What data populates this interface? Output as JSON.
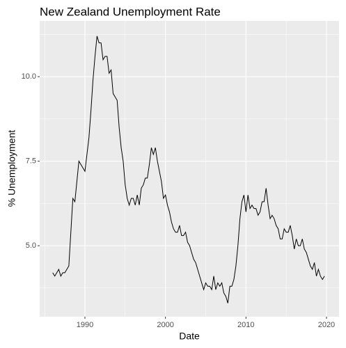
{
  "chart_data": {
    "type": "line",
    "title": "New Zealand Unemployment Rate",
    "x_label": "Date",
    "y_label": "% Unemployment",
    "x": [
      1986,
      1986.25,
      1986.5,
      1986.75,
      1987,
      1987.25,
      1987.5,
      1987.75,
      1988,
      1988.25,
      1988.5,
      1988.75,
      1989,
      1989.25,
      1989.5,
      1989.75,
      1990,
      1990.25,
      1990.5,
      1990.75,
      1991,
      1991.25,
      1991.5,
      1991.75,
      1992,
      1992.25,
      1992.5,
      1992.75,
      1993,
      1993.25,
      1993.5,
      1993.75,
      1994,
      1994.25,
      1994.5,
      1994.75,
      1995,
      1995.25,
      1995.5,
      1995.75,
      1996,
      1996.25,
      1996.5,
      1996.75,
      1997,
      1997.25,
      1997.5,
      1997.75,
      1998,
      1998.25,
      1998.5,
      1998.75,
      1999,
      1999.25,
      1999.5,
      1999.75,
      2000,
      2000.25,
      2000.5,
      2000.75,
      2001,
      2001.25,
      2001.5,
      2001.75,
      2002,
      2002.25,
      2002.5,
      2002.75,
      2003,
      2003.25,
      2003.5,
      2003.75,
      2004,
      2004.25,
      2004.5,
      2004.75,
      2005,
      2005.25,
      2005.5,
      2005.75,
      2006,
      2006.25,
      2006.5,
      2006.75,
      2007,
      2007.25,
      2007.5,
      2007.75,
      2008,
      2008.25,
      2008.5,
      2008.75,
      2009,
      2009.25,
      2009.5,
      2009.75,
      2010,
      2010.25,
      2010.5,
      2010.75,
      2011,
      2011.25,
      2011.5,
      2011.75,
      2012,
      2012.25,
      2012.5,
      2012.75,
      2013,
      2013.25,
      2013.5,
      2013.75,
      2014,
      2014.25,
      2014.5,
      2014.75,
      2015,
      2015.25,
      2015.5,
      2015.75,
      2016,
      2016.25,
      2016.5,
      2016.75,
      2017,
      2017.25,
      2017.5,
      2017.75,
      2018,
      2018.25,
      2018.5,
      2018.75,
      2019,
      2019.25,
      2019.5,
      2019.75
    ],
    "series": [
      {
        "name": "Unemployment",
        "color": "#000000",
        "values": [
          4.2,
          4.1,
          4.2,
          4.3,
          4.1,
          4.2,
          4.2,
          4.3,
          4.4,
          5.4,
          6.4,
          6.3,
          6.9,
          7.5,
          7.4,
          7.3,
          7.2,
          7.7,
          8.2,
          9.0,
          9.9,
          10.6,
          11.2,
          11.0,
          11.0,
          10.5,
          10.6,
          10.6,
          10.1,
          10.2,
          9.5,
          9.4,
          9.3,
          8.5,
          7.9,
          7.5,
          6.8,
          6.4,
          6.2,
          6.4,
          6.4,
          6.2,
          6.5,
          6.2,
          6.7,
          6.8,
          7.0,
          7.0,
          7.4,
          7.9,
          7.7,
          7.9,
          7.5,
          7.2,
          6.9,
          6.4,
          6.5,
          6.2,
          6.0,
          5.7,
          5.5,
          5.4,
          5.4,
          5.6,
          5.3,
          5.3,
          5.4,
          5.1,
          5.0,
          4.8,
          4.6,
          4.5,
          4.3,
          4.1,
          3.9,
          3.7,
          3.9,
          3.8,
          3.8,
          3.7,
          4.1,
          3.7,
          3.9,
          3.8,
          3.9,
          3.6,
          3.5,
          3.3,
          3.8,
          3.8,
          4.0,
          4.4,
          5.0,
          5.8,
          6.3,
          6.5,
          6.0,
          6.5,
          6.1,
          6.2,
          6.1,
          6.1,
          5.9,
          6.0,
          6.3,
          6.3,
          6.7,
          6.2,
          5.8,
          5.9,
          5.8,
          5.6,
          5.5,
          5.2,
          5.2,
          5.5,
          5.4,
          5.4,
          5.6,
          5.3,
          4.9,
          5.2,
          5.0,
          5.0,
          5.2,
          4.9,
          4.8,
          4.6,
          4.4,
          4.3,
          4.5,
          4.1,
          4.3,
          4.1,
          4.0,
          4.1
        ]
      }
    ],
    "xlim": [
      1984.38,
      2021.56
    ],
    "ylim": [
      2.9,
      11.65
    ],
    "xticks": [
      1990,
      2000,
      2010,
      2020
    ],
    "xminor": [
      1985,
      1995,
      2005,
      2015
    ],
    "yticks": [
      {
        "value": 5,
        "label": "5.0"
      },
      7.5,
      {
        "value": 10,
        "label": "10.0"
      }
    ],
    "yminor": [
      3.75,
      6.25,
      8.75,
      11.25
    ],
    "grid": true
  }
}
